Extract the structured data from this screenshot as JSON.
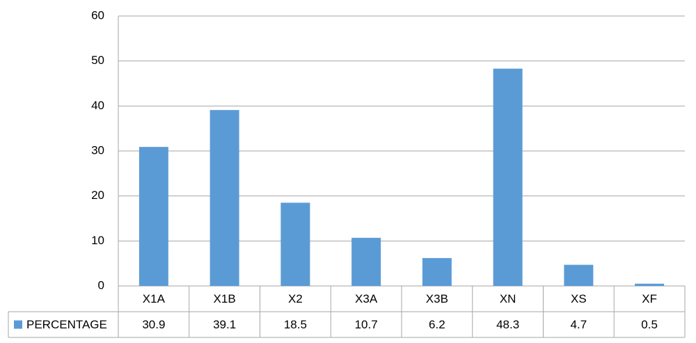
{
  "chart_data": {
    "type": "bar",
    "categories": [
      "X1A",
      "X1B",
      "X2",
      "X3A",
      "X3B",
      "XN",
      "XS",
      "XF"
    ],
    "series": [
      {
        "name": "PERCENTAGE",
        "color": "#5b9bd5",
        "values": [
          30.9,
          39.1,
          18.5,
          10.7,
          6.2,
          48.3,
          4.7,
          0.5
        ]
      }
    ],
    "ylim": [
      0,
      60
    ],
    "yticks": [
      0,
      10,
      20,
      30,
      40,
      50,
      60
    ],
    "grid": true,
    "data_table": true
  }
}
